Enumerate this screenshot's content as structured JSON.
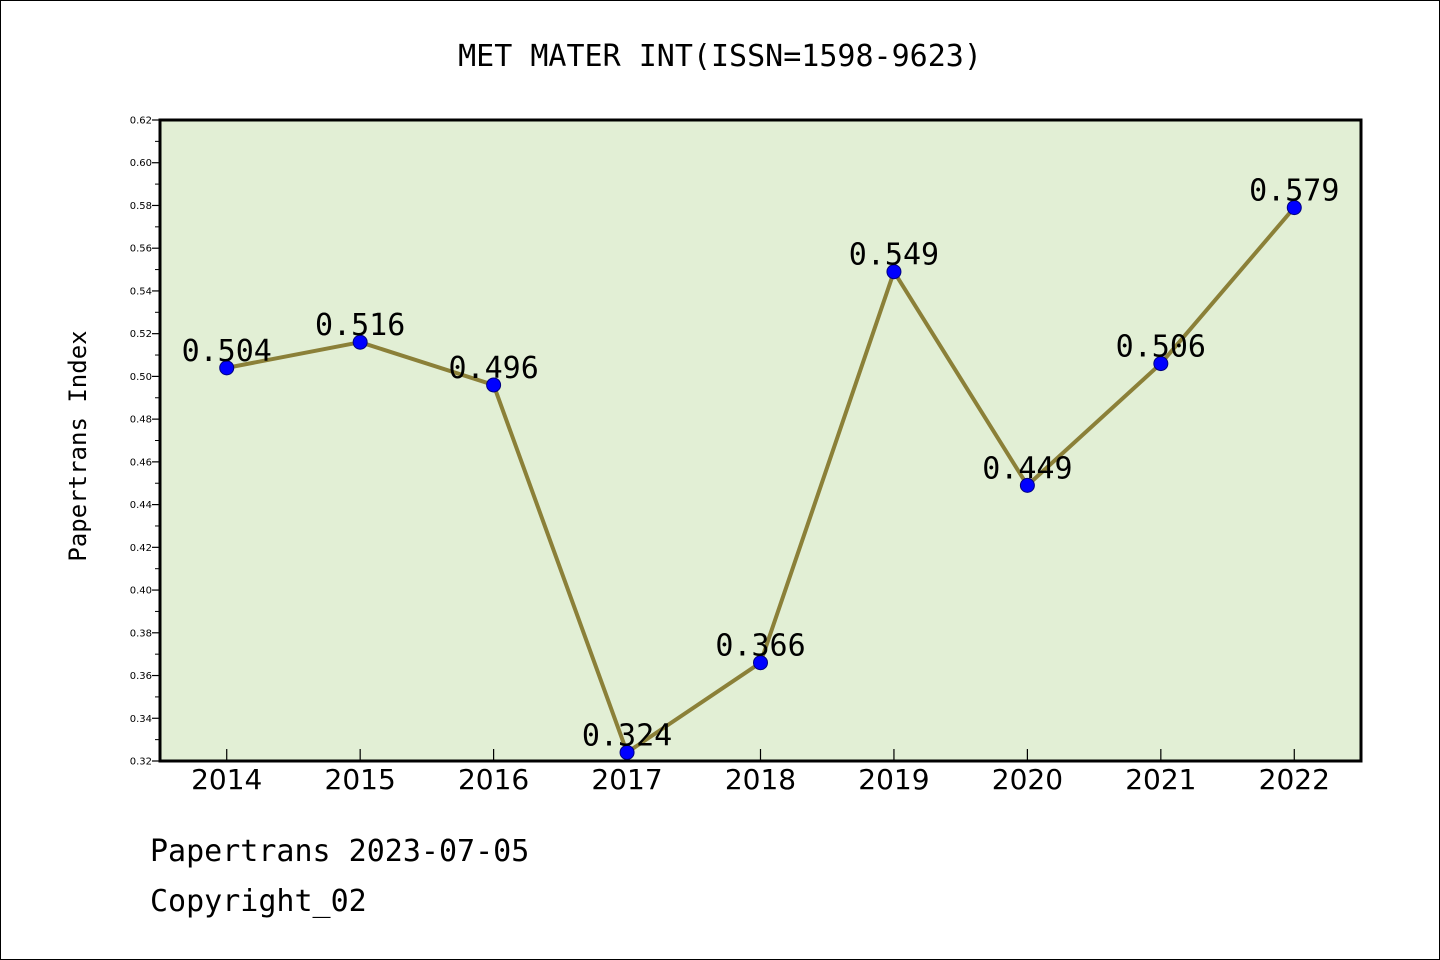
{
  "chart_data": {
    "type": "line",
    "title": "MET MATER INT(ISSN=1598-9623)",
    "xlabel": "",
    "ylabel": "Papertrans Index",
    "categories": [
      "2014",
      "2015",
      "2016",
      "2017",
      "2018",
      "2019",
      "2020",
      "2021",
      "2022"
    ],
    "series": [
      {
        "values": [
          0.504,
          0.516,
          0.496,
          0.324,
          0.366,
          0.549,
          0.449,
          0.506,
          0.579
        ],
        "data_labels": [
          "0.504",
          "0.516",
          "0.496",
          "0.324",
          "0.366",
          "0.549",
          "0.449",
          "0.506",
          "0.579"
        ]
      }
    ],
    "ylim": [
      0.32,
      0.62
    ],
    "yticks": [
      "0.32",
      "0.34",
      "0.36",
      "0.38",
      "0.40",
      "0.42",
      "0.44",
      "0.46",
      "0.48",
      "0.50",
      "0.52",
      "0.54",
      "0.56",
      "0.58",
      "0.60",
      "0.62"
    ],
    "grid": false,
    "legend": "none",
    "colors": {
      "plot_background": "#e2efd5",
      "line": "#8b8038",
      "marker_fill": "#0000ff",
      "marker_edge": "#000080",
      "axis": "#000000"
    }
  },
  "footer": {
    "line1": "Papertrans 2023-07-05",
    "line2": "Copyright_02"
  }
}
